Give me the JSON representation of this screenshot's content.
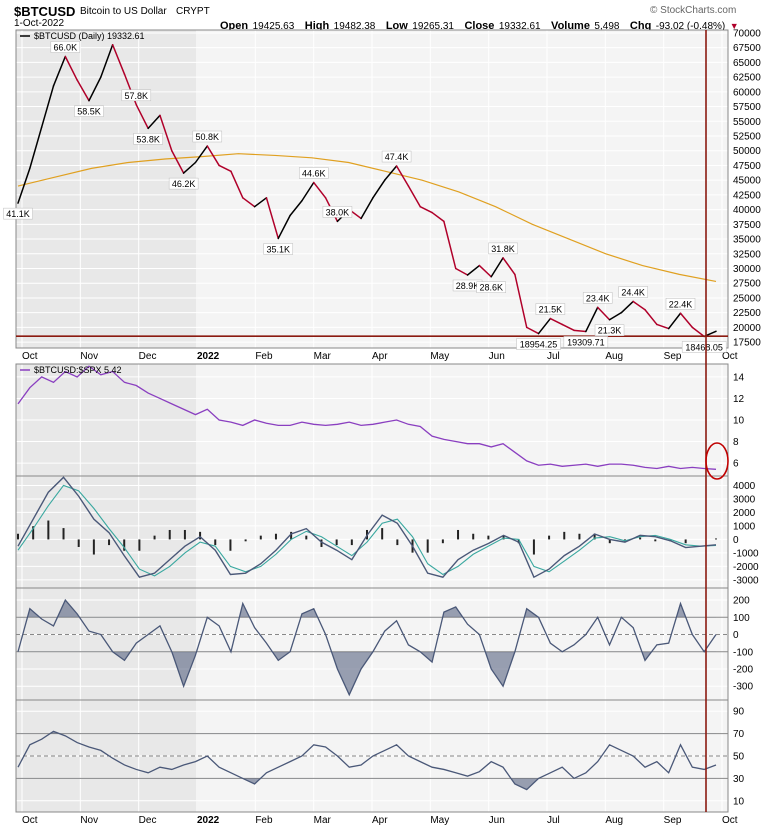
{
  "header": {
    "symbol": "$BTCUSD",
    "name": "Bitcoin to US Dollar",
    "exchange": "CRYPT",
    "date": "1-Oct-2022",
    "open_label": "Open",
    "open": "19425.63",
    "high_label": "High",
    "high": "19482.38",
    "low_label": "Low",
    "low": "19265.31",
    "close_label": "Close",
    "close": "19332.61",
    "volume_label": "Volume",
    "volume": "5,498",
    "chg_label": "Chg",
    "chg": "-93.02 (-0.48%)",
    "watermark": "© StockCharts.com"
  },
  "colors": {
    "price_up": "#000000",
    "price_down": "#b0002a",
    "ma": "#e0a020",
    "ratio": "#8a3fc0",
    "indicator": "#4a5878",
    "signal": "#3aa8a0",
    "support": "#8b1a10",
    "shade": "#e8e8e8"
  },
  "chart_data": [
    {
      "type": "line",
      "legend": "$BTCUSD (Daily) 19332.61",
      "x_ticks": [
        "Oct",
        "Nov",
        "Dec",
        "2022",
        "Feb",
        "Mar",
        "Apr",
        "May",
        "Jun",
        "Jul",
        "Aug",
        "Sep",
        "Oct"
      ],
      "y_ticks": [
        17500,
        20000,
        22500,
        25000,
        27500,
        30000,
        32500,
        35000,
        37500,
        40000,
        42500,
        45000,
        47500,
        50000,
        52500,
        55000,
        57500,
        60000,
        62500,
        65000,
        67500,
        70000
      ],
      "ylim": [
        16500,
        70500
      ],
      "series": [
        {
          "values": [
            41100,
            47000,
            54000,
            61000,
            66000,
            62000,
            58500,
            62500,
            68000,
            63000,
            57800,
            53800,
            56000,
            50000,
            46200,
            48000,
            50800,
            47500,
            46500,
            42000,
            40500,
            42000,
            35100,
            39000,
            41500,
            44600,
            42000,
            38000,
            40000,
            38500,
            42000,
            45000,
            47400,
            44000,
            40500,
            39500,
            38000,
            30000,
            28900,
            30500,
            28600,
            31800,
            29000,
            20000,
            18954.25,
            21500,
            20500,
            19500,
            19309.71,
            23400,
            21300,
            22500,
            24400,
            23000,
            20500,
            19800,
            22400,
            20000,
            18468.05,
            19332.61
          ]
        },
        {
          "values": [
            44000,
            45500,
            47000,
            48000,
            48600,
            49000,
            49500,
            49200,
            48800,
            48000,
            46500,
            45000,
            43000,
            40500,
            37500,
            35000,
            32500,
            30500,
            29000,
            27800
          ]
        }
      ],
      "annotations": [
        {
          "text": "41.1K",
          "x": 0,
          "y": 41100
        },
        {
          "text": "66.0K",
          "x": 4,
          "y": 66000
        },
        {
          "text": "58.5K",
          "x": 6,
          "y": 58500
        },
        {
          "text": "57.8K",
          "x": 10,
          "y": 57800
        },
        {
          "text": "53.8K",
          "x": 11,
          "y": 53800
        },
        {
          "text": "46.2K",
          "x": 14,
          "y": 46200
        },
        {
          "text": "50.8K",
          "x": 16,
          "y": 50800
        },
        {
          "text": "35.1K",
          "x": 22,
          "y": 35100
        },
        {
          "text": "44.6K",
          "x": 25,
          "y": 44600
        },
        {
          "text": "38.0K",
          "x": 27,
          "y": 38000
        },
        {
          "text": "47.4K",
          "x": 32,
          "y": 47400
        },
        {
          "text": "28.9K",
          "x": 38,
          "y": 28900
        },
        {
          "text": "28.6K",
          "x": 40,
          "y": 28600
        },
        {
          "text": "31.8K",
          "x": 41,
          "y": 31800
        },
        {
          "text": "18954.25",
          "x": 44,
          "y": 18954.25
        },
        {
          "text": "21.5K",
          "x": 45,
          "y": 21500
        },
        {
          "text": "19309.71",
          "x": 48,
          "y": 19309.71
        },
        {
          "text": "23.4K",
          "x": 49,
          "y": 23400
        },
        {
          "text": "21.3K",
          "x": 50,
          "y": 21300
        },
        {
          "text": "24.4K",
          "x": 52,
          "y": 24400
        },
        {
          "text": "22.4K",
          "x": 56,
          "y": 22400
        },
        {
          "text": "18468.05",
          "x": 58,
          "y": 18468.05
        }
      ],
      "support_level": 18500
    },
    {
      "type": "line",
      "legend": "$BTCUSD:$SPX 5.42",
      "y_ticks": [
        6,
        8,
        10,
        12,
        14
      ],
      "ylim": [
        4.8,
        15.2
      ],
      "series": [
        {
          "values": [
            11.5,
            13,
            14,
            13.5,
            14.5,
            14,
            15,
            14.2,
            14.5,
            13.5,
            13.2,
            12.5,
            12,
            11.5,
            11,
            10.5,
            11,
            10,
            9.8,
            9.5,
            10,
            9.7,
            9.5,
            9.5,
            9.8,
            9.6,
            9.5,
            9.6,
            9.8,
            9.5,
            9.6,
            9.8,
            10,
            9.6,
            9.4,
            8.5,
            8.2,
            8,
            7.8,
            7.8,
            7.5,
            7.8,
            7,
            6.2,
            5.8,
            5.9,
            5.7,
            5.8,
            5.9,
            5.7,
            5.9,
            5.9,
            5.8,
            5.6,
            5.5,
            5.7,
            5.5,
            5.6,
            5.5,
            5.42
          ]
        }
      ]
    },
    {
      "type": "line",
      "y_ticks": [
        -3000,
        -2000,
        -1000,
        0,
        1000,
        2000,
        3000,
        4000
      ],
      "ylim": [
        -3600,
        4700
      ],
      "series": [
        {
          "values": [
            -500,
            1500,
            3500,
            4600,
            3200,
            1500,
            500,
            -1200,
            -2800,
            -2500,
            -1500,
            -500,
            200,
            -800,
            -2600,
            -2500,
            -1800,
            -800,
            400,
            800,
            -200,
            -800,
            -1500,
            300,
            1800,
            1200,
            -500,
            -2500,
            -2800,
            -1500,
            -800,
            -300,
            300,
            -200,
            -2800,
            -2200,
            -1200,
            -500,
            400,
            0,
            -200,
            300,
            200,
            -100,
            -600,
            -500,
            -400
          ]
        },
        {
          "values": [
            -800,
            800,
            2500,
            4000,
            3600,
            2300,
            800,
            -600,
            -2200,
            -2700,
            -2000,
            -1000,
            -200,
            -500,
            -2000,
            -2400,
            -2000,
            -1100,
            0,
            600,
            200,
            -500,
            -1200,
            -200,
            1200,
            1500,
            200,
            -1800,
            -2600,
            -2000,
            -1100,
            -500,
            100,
            0,
            -2000,
            -2400,
            -1600,
            -800,
            100,
            200,
            -100,
            200,
            300,
            0,
            -400,
            -500,
            -450
          ]
        }
      ]
    },
    {
      "type": "line",
      "y_ticks": [
        -300,
        -200,
        -100,
        0,
        100,
        200
      ],
      "ylim": [
        -380,
        270
      ],
      "series": [
        {
          "values": [
            -100,
            150,
            90,
            50,
            200,
            120,
            20,
            0,
            -100,
            -150,
            -50,
            0,
            50,
            -100,
            -300,
            -120,
            100,
            50,
            -100,
            180,
            40,
            -50,
            -150,
            -100,
            120,
            150,
            0,
            -200,
            -350,
            -200,
            -100,
            20,
            80,
            -60,
            -100,
            -160,
            130,
            160,
            60,
            0,
            -200,
            -300,
            -100,
            150,
            100,
            -50,
            -100,
            -60,
            0,
            100,
            -60,
            100,
            40,
            -150,
            -60,
            -50,
            180,
            0,
            -100,
            0
          ]
        }
      ]
    },
    {
      "type": "line",
      "y_ticks": [
        10,
        30,
        50,
        70,
        90
      ],
      "ylim": [
        0,
        100
      ],
      "series": [
        {
          "values": [
            40,
            60,
            65,
            72,
            68,
            62,
            58,
            55,
            48,
            42,
            38,
            35,
            40,
            38,
            42,
            45,
            50,
            40,
            35,
            30,
            25,
            35,
            40,
            45,
            50,
            60,
            58,
            50,
            40,
            42,
            50,
            55,
            60,
            50,
            45,
            40,
            38,
            35,
            32,
            36,
            45,
            40,
            25,
            20,
            30,
            35,
            40,
            30,
            35,
            45,
            60,
            55,
            50,
            40,
            45,
            35,
            60,
            40,
            38,
            42
          ]
        }
      ],
      "reference_lines": [
        30,
        50,
        70
      ]
    }
  ]
}
